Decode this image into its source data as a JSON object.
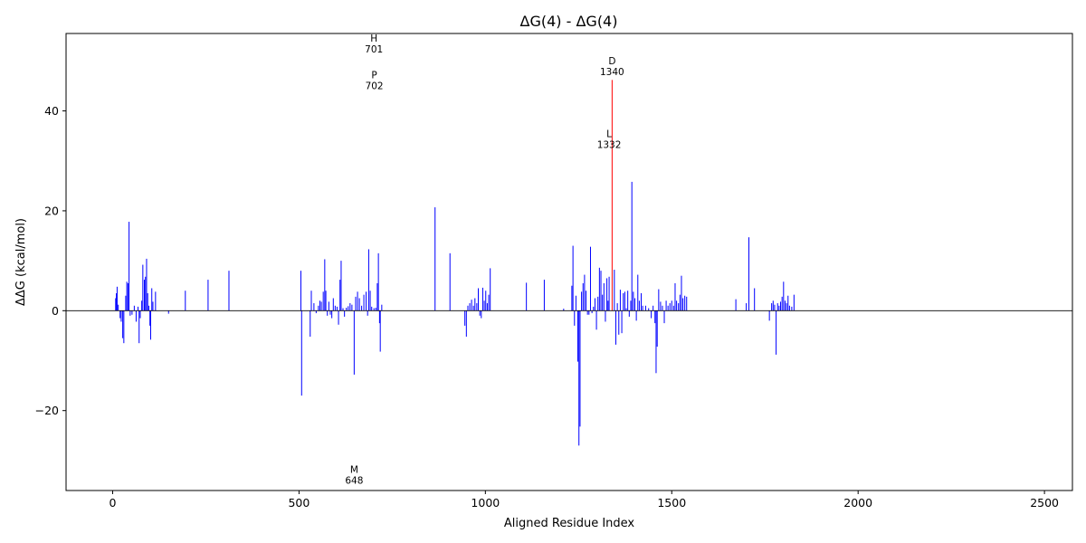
{
  "chart_data": {
    "type": "bar",
    "title": "ΔG(4) - ΔG(4)",
    "xlabel": "Aligned Residue Index",
    "ylabel": "ΔΔG (kcal/mol)",
    "xlim": [
      -125,
      2575
    ],
    "ylim": [
      -36,
      55.5
    ],
    "xticks": [
      0,
      500,
      1000,
      1500,
      2000,
      2500
    ],
    "yticks": [
      -20,
      0,
      20,
      40
    ],
    "ytick_labels": [
      "−20",
      "0",
      "20",
      "40"
    ],
    "grid": false,
    "zero_line": true,
    "colors": {
      "bar": "#0000ff",
      "highlight": "#ff0000",
      "axis": "#000000"
    },
    "bars": [
      {
        "x": 8,
        "y": 2.5
      },
      {
        "x": 10,
        "y": 3.5
      },
      {
        "x": 12,
        "y": 4.8
      },
      {
        "x": 15,
        "y": 1.2
      },
      {
        "x": 20,
        "y": -1.5
      },
      {
        "x": 23,
        "y": -2.2
      },
      {
        "x": 27,
        "y": -5.5
      },
      {
        "x": 30,
        "y": -6.5
      },
      {
        "x": 35,
        "y": 3.0
      },
      {
        "x": 38,
        "y": 5.8
      },
      {
        "x": 41,
        "y": 5.5
      },
      {
        "x": 44,
        "y": 17.8
      },
      {
        "x": 47,
        "y": -1.0
      },
      {
        "x": 52,
        "y": -0.8
      },
      {
        "x": 58,
        "y": 1.0
      },
      {
        "x": 63,
        "y": -2.2
      },
      {
        "x": 68,
        "y": 0.8
      },
      {
        "x": 71,
        "y": -6.5
      },
      {
        "x": 74,
        "y": -1.5
      },
      {
        "x": 78,
        "y": 2.0
      },
      {
        "x": 81,
        "y": 9.2
      },
      {
        "x": 85,
        "y": 6.2
      },
      {
        "x": 88,
        "y": 6.8
      },
      {
        "x": 91,
        "y": 10.4
      },
      {
        "x": 94,
        "y": 3.5
      },
      {
        "x": 97,
        "y": 1.0
      },
      {
        "x": 100,
        "y": -3.0
      },
      {
        "x": 102,
        "y": -5.8
      },
      {
        "x": 105,
        "y": 4.5
      },
      {
        "x": 108,
        "y": 1.8
      },
      {
        "x": 115,
        "y": 3.8
      },
      {
        "x": 150,
        "y": -0.6
      },
      {
        "x": 195,
        "y": 4.0
      },
      {
        "x": 256,
        "y": 6.2
      },
      {
        "x": 312,
        "y": 8.0
      },
      {
        "x": 505,
        "y": 8.0
      },
      {
        "x": 507,
        "y": -17.0
      },
      {
        "x": 530,
        "y": -5.2
      },
      {
        "x": 533,
        "y": 4.0
      },
      {
        "x": 540,
        "y": 1.5
      },
      {
        "x": 546,
        "y": -0.5
      },
      {
        "x": 552,
        "y": 1.0
      },
      {
        "x": 556,
        "y": 2.0
      },
      {
        "x": 560,
        "y": 1.8
      },
      {
        "x": 565,
        "y": 3.8
      },
      {
        "x": 569,
        "y": 10.3
      },
      {
        "x": 572,
        "y": 4.0
      },
      {
        "x": 576,
        "y": -1.0
      },
      {
        "x": 580,
        "y": 1.8
      },
      {
        "x": 584,
        "y": -0.8
      },
      {
        "x": 588,
        "y": -1.5
      },
      {
        "x": 592,
        "y": 2.5
      },
      {
        "x": 597,
        "y": 1.0
      },
      {
        "x": 602,
        "y": 0.8
      },
      {
        "x": 606,
        "y": -2.8
      },
      {
        "x": 610,
        "y": 6.2
      },
      {
        "x": 613,
        "y": 10.0
      },
      {
        "x": 618,
        "y": 0.5
      },
      {
        "x": 622,
        "y": -1.2
      },
      {
        "x": 627,
        "y": 0.6
      },
      {
        "x": 632,
        "y": 0.9
      },
      {
        "x": 637,
        "y": 1.5
      },
      {
        "x": 642,
        "y": 1.2
      },
      {
        "x": 648,
        "y": -12.8
      },
      {
        "x": 652,
        "y": 2.8
      },
      {
        "x": 657,
        "y": 3.8
      },
      {
        "x": 662,
        "y": 2.5
      },
      {
        "x": 668,
        "y": 1.0
      },
      {
        "x": 674,
        "y": 3.2
      },
      {
        "x": 680,
        "y": 3.8
      },
      {
        "x": 684,
        "y": -1.0
      },
      {
        "x": 687,
        "y": 12.3
      },
      {
        "x": 691,
        "y": 4.0
      },
      {
        "x": 695,
        "y": 0.8
      },
      {
        "x": 701,
        "y": 0.5
      },
      {
        "x": 706,
        "y": 0.6
      },
      {
        "x": 710,
        "y": 5.5
      },
      {
        "x": 713,
        "y": 11.5
      },
      {
        "x": 716,
        "y": -2.5
      },
      {
        "x": 718,
        "y": -8.2
      },
      {
        "x": 722,
        "y": 1.2
      },
      {
        "x": 865,
        "y": 20.7
      },
      {
        "x": 905,
        "y": 11.5
      },
      {
        "x": 945,
        "y": -3.0
      },
      {
        "x": 949,
        "y": -5.2
      },
      {
        "x": 953,
        "y": 1.0
      },
      {
        "x": 958,
        "y": 1.5
      },
      {
        "x": 963,
        "y": 2.2
      },
      {
        "x": 968,
        "y": 1.0
      },
      {
        "x": 972,
        "y": 2.5
      },
      {
        "x": 977,
        "y": 1.5
      },
      {
        "x": 981,
        "y": 4.5
      },
      {
        "x": 985,
        "y": -1.0
      },
      {
        "x": 989,
        "y": -1.5
      },
      {
        "x": 993,
        "y": 4.6
      },
      {
        "x": 997,
        "y": 2.0
      },
      {
        "x": 1001,
        "y": 4.0
      },
      {
        "x": 1005,
        "y": 1.5
      },
      {
        "x": 1009,
        "y": 3.2
      },
      {
        "x": 1013,
        "y": 8.5
      },
      {
        "x": 1110,
        "y": 5.6
      },
      {
        "x": 1158,
        "y": 6.2
      },
      {
        "x": 1210,
        "y": 0.4
      },
      {
        "x": 1232,
        "y": 5.0
      },
      {
        "x": 1235,
        "y": 13.0
      },
      {
        "x": 1239,
        "y": -3.0
      },
      {
        "x": 1243,
        "y": 3.0
      },
      {
        "x": 1248,
        "y": -10.2
      },
      {
        "x": 1251,
        "y": -27.0
      },
      {
        "x": 1254,
        "y": -23.2
      },
      {
        "x": 1258,
        "y": 3.8
      },
      {
        "x": 1262,
        "y": 5.5
      },
      {
        "x": 1266,
        "y": 7.2
      },
      {
        "x": 1270,
        "y": 4.0
      },
      {
        "x": 1274,
        "y": -0.8
      },
      {
        "x": 1278,
        "y": -0.8
      },
      {
        "x": 1282,
        "y": 12.8
      },
      {
        "x": 1286,
        "y": -0.5
      },
      {
        "x": 1290,
        "y": 0.8
      },
      {
        "x": 1294,
        "y": 2.5
      },
      {
        "x": 1298,
        "y": -3.8
      },
      {
        "x": 1302,
        "y": 2.8
      },
      {
        "x": 1306,
        "y": 8.6
      },
      {
        "x": 1310,
        "y": 8.0
      },
      {
        "x": 1314,
        "y": 3.2
      },
      {
        "x": 1318,
        "y": 5.5
      },
      {
        "x": 1322,
        "y": -2.2
      },
      {
        "x": 1326,
        "y": 6.5
      },
      {
        "x": 1329,
        "y": 2.0
      },
      {
        "x": 1332,
        "y": 6.8
      },
      {
        "x": 1340,
        "y": 46.2
      },
      {
        "x": 1346,
        "y": 8.2
      },
      {
        "x": 1350,
        "y": -6.8
      },
      {
        "x": 1354,
        "y": 1.5
      },
      {
        "x": 1358,
        "y": -4.8
      },
      {
        "x": 1362,
        "y": 4.2
      },
      {
        "x": 1366,
        "y": -4.5
      },
      {
        "x": 1370,
        "y": 3.5
      },
      {
        "x": 1374,
        "y": 3.8
      },
      {
        "x": 1378,
        "y": 0.5
      },
      {
        "x": 1382,
        "y": 4.0
      },
      {
        "x": 1386,
        "y": -1.2
      },
      {
        "x": 1390,
        "y": 2.0
      },
      {
        "x": 1393,
        "y": 25.8
      },
      {
        "x": 1397,
        "y": 3.8
      },
      {
        "x": 1401,
        "y": 2.5
      },
      {
        "x": 1405,
        "y": -2.0
      },
      {
        "x": 1409,
        "y": 7.2
      },
      {
        "x": 1413,
        "y": 2.0
      },
      {
        "x": 1418,
        "y": 3.5
      },
      {
        "x": 1422,
        "y": 1.0
      },
      {
        "x": 1430,
        "y": 1.0
      },
      {
        "x": 1438,
        "y": 0.5
      },
      {
        "x": 1445,
        "y": -1.5
      },
      {
        "x": 1450,
        "y": 1.0
      },
      {
        "x": 1455,
        "y": -2.5
      },
      {
        "x": 1458,
        "y": -12.5
      },
      {
        "x": 1461,
        "y": -7.2
      },
      {
        "x": 1465,
        "y": 4.3
      },
      {
        "x": 1470,
        "y": 1.8
      },
      {
        "x": 1475,
        "y": 1.0
      },
      {
        "x": 1480,
        "y": -2.5
      },
      {
        "x": 1485,
        "y": 2.0
      },
      {
        "x": 1490,
        "y": 1.0
      },
      {
        "x": 1495,
        "y": 1.5
      },
      {
        "x": 1500,
        "y": 2.0
      },
      {
        "x": 1505,
        "y": 1.0
      },
      {
        "x": 1509,
        "y": 5.5
      },
      {
        "x": 1513,
        "y": 2.0
      },
      {
        "x": 1518,
        "y": 1.5
      },
      {
        "x": 1522,
        "y": 3.2
      },
      {
        "x": 1526,
        "y": 7.0
      },
      {
        "x": 1530,
        "y": 2.5
      },
      {
        "x": 1535,
        "y": 3.0
      },
      {
        "x": 1540,
        "y": 2.8
      },
      {
        "x": 1672,
        "y": 2.3
      },
      {
        "x": 1700,
        "y": 1.5
      },
      {
        "x": 1707,
        "y": 14.7
      },
      {
        "x": 1722,
        "y": 4.5
      },
      {
        "x": 1762,
        "y": -2.0
      },
      {
        "x": 1768,
        "y": 1.5
      },
      {
        "x": 1772,
        "y": 2.0
      },
      {
        "x": 1776,
        "y": 1.2
      },
      {
        "x": 1780,
        "y": -8.8
      },
      {
        "x": 1784,
        "y": 1.5
      },
      {
        "x": 1788,
        "y": 1.0
      },
      {
        "x": 1792,
        "y": 1.8
      },
      {
        "x": 1796,
        "y": 2.8
      },
      {
        "x": 1800,
        "y": 5.8
      },
      {
        "x": 1804,
        "y": 2.0
      },
      {
        "x": 1808,
        "y": 1.5
      },
      {
        "x": 1812,
        "y": 3.0
      },
      {
        "x": 1816,
        "y": 1.0
      },
      {
        "x": 1822,
        "y": 0.8
      },
      {
        "x": 1828,
        "y": 3.2
      }
    ],
    "highlight_x": 1340,
    "annotations": [
      {
        "aa": "H",
        "index": "701",
        "x": 701,
        "y": 53.5
      },
      {
        "aa": "P",
        "index": "702",
        "x": 702,
        "y": 46.2
      },
      {
        "aa": "D",
        "index": "1340",
        "x": 1340,
        "y": 49.0
      },
      {
        "aa": "L",
        "index": "1332",
        "x": 1332,
        "y": 34.4
      },
      {
        "aa": "M",
        "index": "648",
        "x": 648,
        "y": -32.8
      }
    ]
  }
}
